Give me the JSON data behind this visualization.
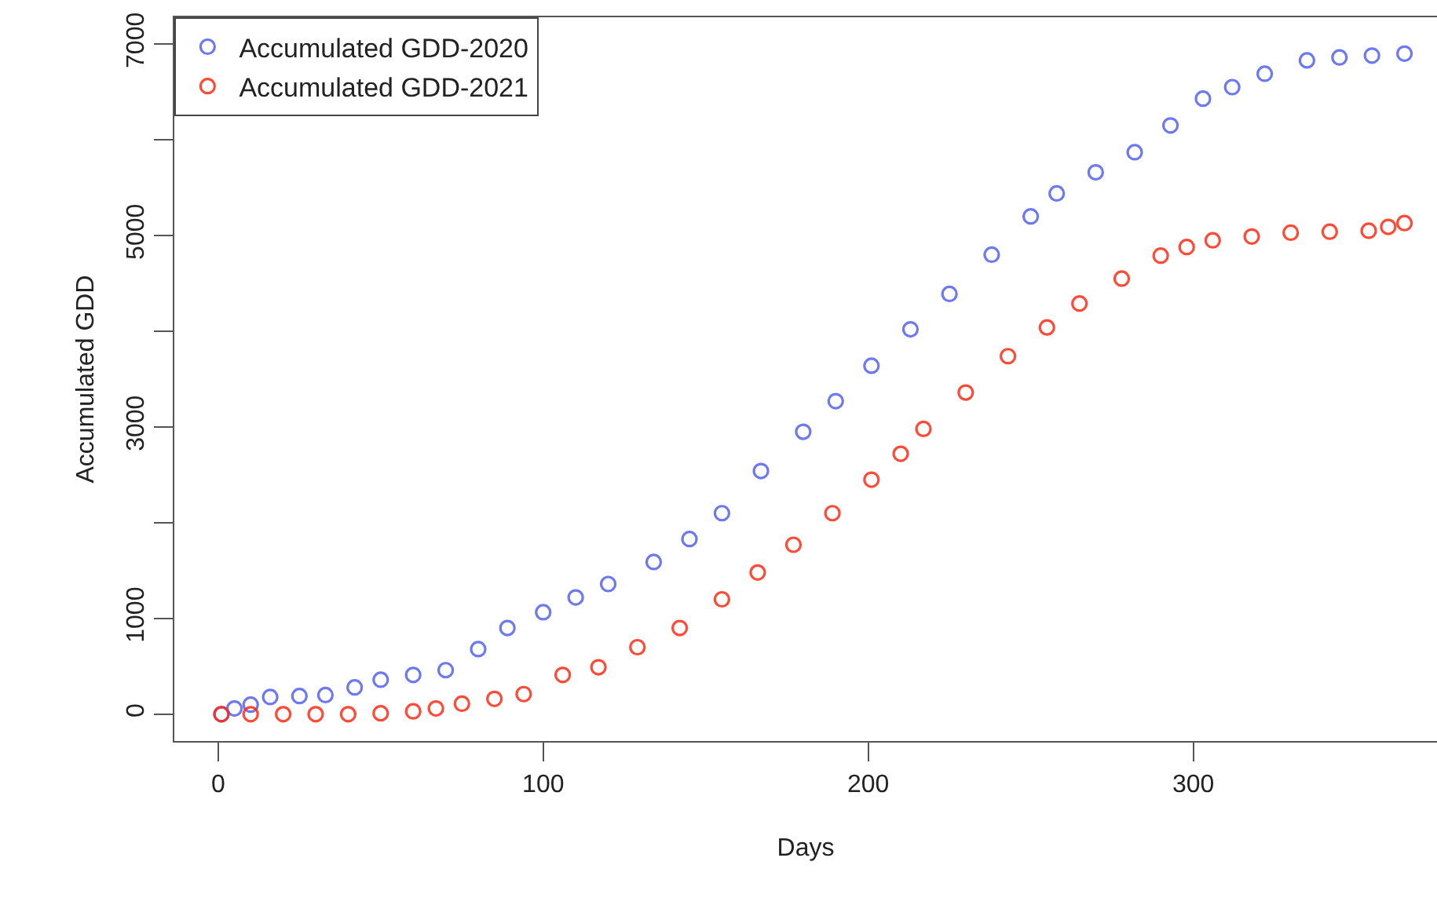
{
  "chart_data": {
    "type": "scatter",
    "xlabel": "Days",
    "ylabel": "Accumulated GDD",
    "marker": "circle",
    "legend": "top left",
    "grid": false,
    "xlim": [
      -13.5,
      375
    ],
    "xticks": [
      0,
      100,
      200,
      300
    ],
    "ylim": [
      -280,
      7280
    ],
    "yticks": [
      0,
      1000,
      {
        "value": 2000,
        "label": null
      },
      3000,
      {
        "value": 4000,
        "label": null
      },
      5000,
      {
        "value": 6000,
        "label": null
      },
      7000
    ],
    "series": [
      {
        "name": "Accumulated GDD-2020",
        "color": "#5462ee",
        "x": [
          1,
          5,
          10,
          16,
          25,
          33,
          42,
          50,
          60,
          70,
          80,
          89,
          100,
          110,
          120,
          134,
          145,
          155,
          167,
          180,
          190,
          201,
          213,
          225,
          238,
          250,
          258,
          270,
          282,
          293,
          303,
          312,
          322,
          335,
          345,
          355,
          365
        ],
        "values": [
          0,
          60,
          100,
          180,
          190,
          200,
          280,
          360,
          410,
          460,
          680,
          900,
          1065,
          1220,
          1360,
          1590,
          1830,
          2100,
          2540,
          2950,
          3270,
          3640,
          4020,
          4390,
          4800,
          5200,
          5440,
          5660,
          5870,
          6150,
          6430,
          6550,
          6690,
          6830,
          6860,
          6880,
          6900
        ]
      },
      {
        "name": "Accumulated GDD-2021",
        "color": "#ff2a14",
        "x": [
          1,
          10,
          20,
          30,
          40,
          50,
          60,
          67,
          75,
          85,
          94,
          106,
          117,
          129,
          142,
          155,
          166,
          177,
          189,
          201,
          210,
          217,
          230,
          243,
          255,
          265,
          278,
          290,
          298,
          306,
          318,
          330,
          342,
          354,
          360,
          365
        ],
        "values": [
          0,
          0,
          0,
          0,
          0,
          10,
          30,
          60,
          110,
          160,
          210,
          410,
          490,
          700,
          900,
          1200,
          1480,
          1770,
          2100,
          2450,
          2720,
          2980,
          3360,
          3740,
          4040,
          4290,
          4550,
          4790,
          4880,
          4950,
          4990,
          5030,
          5040,
          5050,
          5090,
          5130
        ]
      }
    ]
  }
}
